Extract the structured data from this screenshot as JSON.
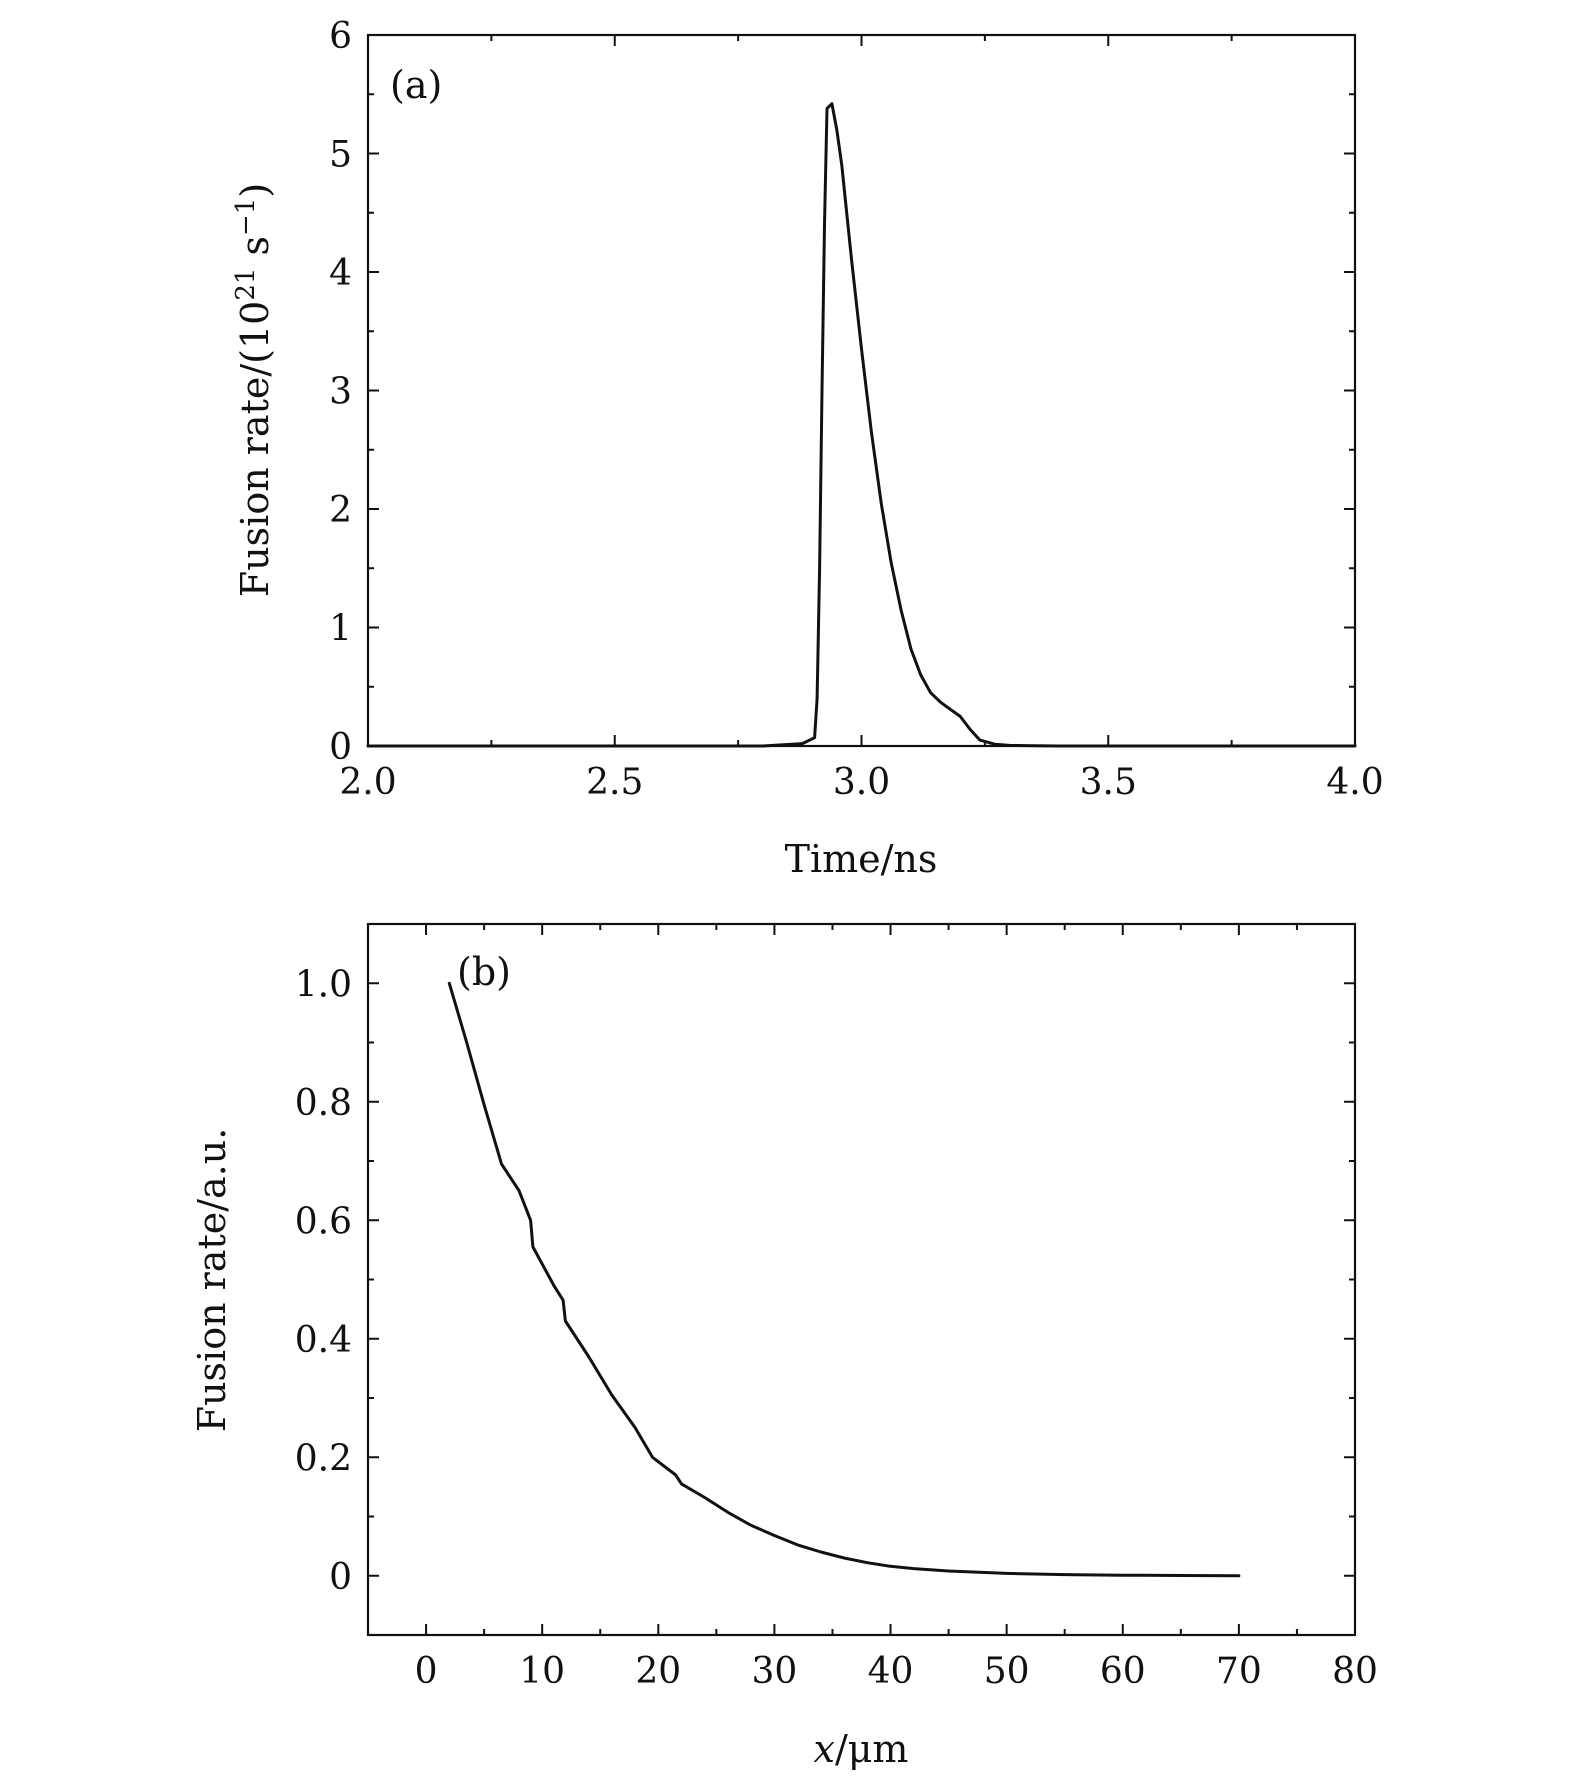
{
  "chart_data": [
    {
      "panel_tag": "(a)",
      "type": "line",
      "xlabel": "Time/ns",
      "ylabel_main": "Fusion rate/(10",
      "ylabel_sup1": "21",
      "ylabel_mid": " s",
      "ylabel_sup2": "−1",
      "ylabel_end": ")",
      "xlim": [
        2.0,
        4.0
      ],
      "ylim": [
        0,
        6
      ],
      "xticks": [
        2.0,
        2.5,
        3.0,
        3.5,
        4.0
      ],
      "xtick_labels": [
        "2.0",
        "2.5",
        "3.0",
        "3.5",
        "4.0"
      ],
      "xminor": [
        2.25,
        2.75,
        3.25,
        3.75
      ],
      "yticks": [
        0,
        1,
        2,
        3,
        4,
        5,
        6
      ],
      "ytick_labels": [
        "0",
        "1",
        "2",
        "3",
        "4",
        "5",
        "6"
      ],
      "yminor": [
        0.5,
        1.5,
        2.5,
        3.5,
        4.5,
        5.5
      ],
      "grid": false,
      "series": [
        {
          "x": [
            2.0,
            2.8,
            2.88,
            2.905,
            2.91,
            2.915,
            2.92,
            2.925,
            2.93,
            2.94,
            2.95,
            2.96,
            2.97,
            2.98,
            3.0,
            3.02,
            3.04,
            3.06,
            3.08,
            3.1,
            3.12,
            3.14,
            3.16,
            3.18,
            3.2,
            3.22,
            3.24,
            3.27,
            3.3,
            3.35,
            3.4,
            4.0
          ],
          "y": [
            0,
            0,
            0.02,
            0.07,
            0.4,
            1.5,
            3.0,
            4.4,
            5.38,
            5.42,
            5.2,
            4.9,
            4.5,
            4.1,
            3.35,
            2.65,
            2.05,
            1.55,
            1.15,
            0.82,
            0.6,
            0.45,
            0.37,
            0.31,
            0.25,
            0.14,
            0.05,
            0.015,
            0.005,
            0.002,
            0,
            0
          ]
        }
      ]
    },
    {
      "panel_tag": "(b)",
      "type": "line",
      "xlabel_var": "x",
      "xlabel_unit": "/μm",
      "ylabel": "Fusion rate/a.u.",
      "xlim": [
        -5,
        80
      ],
      "ylim": [
        -0.1,
        1.1
      ],
      "xticks": [
        0,
        10,
        20,
        30,
        40,
        50,
        60,
        70,
        80
      ],
      "xtick_labels": [
        "0",
        "10",
        "20",
        "30",
        "40",
        "50",
        "60",
        "70",
        "80"
      ],
      "xminor": [
        5,
        15,
        25,
        35,
        45,
        55,
        65,
        75
      ],
      "yticks": [
        0,
        0.2,
        0.4,
        0.6,
        0.8,
        1.0
      ],
      "ytick_labels": [
        "0",
        "0.2",
        "0.4",
        "0.6",
        "0.8",
        "1.0"
      ],
      "yminor": [
        -0.1,
        0.1,
        0.3,
        0.5,
        0.7,
        0.9,
        1.1
      ],
      "grid": false,
      "series": [
        {
          "x": [
            2,
            3.5,
            5,
            6.5,
            8,
            9,
            9.2,
            11,
            11.8,
            12,
            14,
            16,
            18,
            19.5,
            21.5,
            22,
            24,
            26,
            28,
            30,
            32,
            34,
            36,
            38,
            40,
            42,
            45,
            50,
            55,
            60,
            65,
            70
          ],
          "y": [
            1.0,
            0.9,
            0.795,
            0.695,
            0.65,
            0.6,
            0.555,
            0.49,
            0.465,
            0.43,
            0.37,
            0.305,
            0.25,
            0.2,
            0.17,
            0.155,
            0.132,
            0.107,
            0.085,
            0.068,
            0.052,
            0.04,
            0.03,
            0.022,
            0.016,
            0.012,
            0.008,
            0.004,
            0.002,
            0.001,
            0.0005,
            0
          ]
        }
      ]
    }
  ]
}
